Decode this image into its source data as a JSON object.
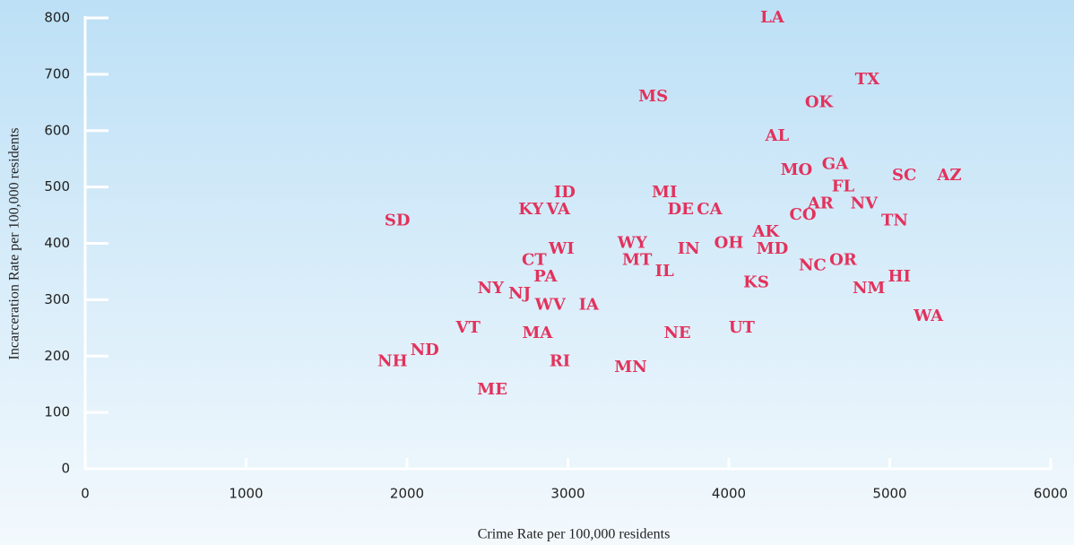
{
  "chart_data": {
    "type": "scatter",
    "x_label": "Crime Rate per 100,000 residents",
    "y_label": "Incarceration Rate per 100,000 residents",
    "xlim": [
      0,
      6000
    ],
    "ylim": [
      0,
      800
    ],
    "xticks": [
      0,
      1000,
      2000,
      3000,
      4000,
      5000,
      6000
    ],
    "yticks": [
      0,
      100,
      200,
      300,
      400,
      500,
      600,
      700,
      800
    ],
    "color": "#e2325c",
    "point_labels": [
      "LA",
      "TX",
      "MS",
      "OK",
      "AL",
      "MO",
      "GA",
      "SC",
      "AZ",
      "FL",
      "ID",
      "MI",
      "AR",
      "NV",
      "KY",
      "VA",
      "DE",
      "CA",
      "CO",
      "SD",
      "TN",
      "AK",
      "WY",
      "OH",
      "IN",
      "MD",
      "WI",
      "CT",
      "MT",
      "OR",
      "NC",
      "IL",
      "HI",
      "PA",
      "KS",
      "NY",
      "NJ",
      "NM",
      "WV",
      "IA",
      "WA",
      "UT",
      "VT",
      "NE",
      "MA",
      "ND",
      "NH",
      "RI",
      "MN",
      "ME"
    ],
    "x": [
      4270,
      4860,
      3530,
      4560,
      4300,
      4420,
      4660,
      5090,
      5370,
      4710,
      2980,
      3600,
      4570,
      4840,
      2770,
      2940,
      3700,
      3880,
      4460,
      1940,
      5030,
      4230,
      3400,
      4000,
      3750,
      4270,
      2960,
      2790,
      3430,
      4710,
      4520,
      3600,
      5060,
      2860,
      4170,
      2520,
      2700,
      4870,
      2890,
      3130,
      5240,
      4080,
      2380,
      3680,
      2810,
      2110,
      1910,
      2950,
      3390,
      2530
    ],
    "values": [
      800,
      690,
      660,
      650,
      590,
      530,
      540,
      520,
      520,
      500,
      490,
      490,
      470,
      470,
      460,
      460,
      460,
      460,
      450,
      440,
      440,
      420,
      400,
      400,
      390,
      390,
      390,
      370,
      370,
      370,
      360,
      350,
      340,
      340,
      330,
      320,
      310,
      320,
      290,
      290,
      270,
      250,
      250,
      240,
      240,
      210,
      190,
      190,
      180,
      140
    ]
  }
}
